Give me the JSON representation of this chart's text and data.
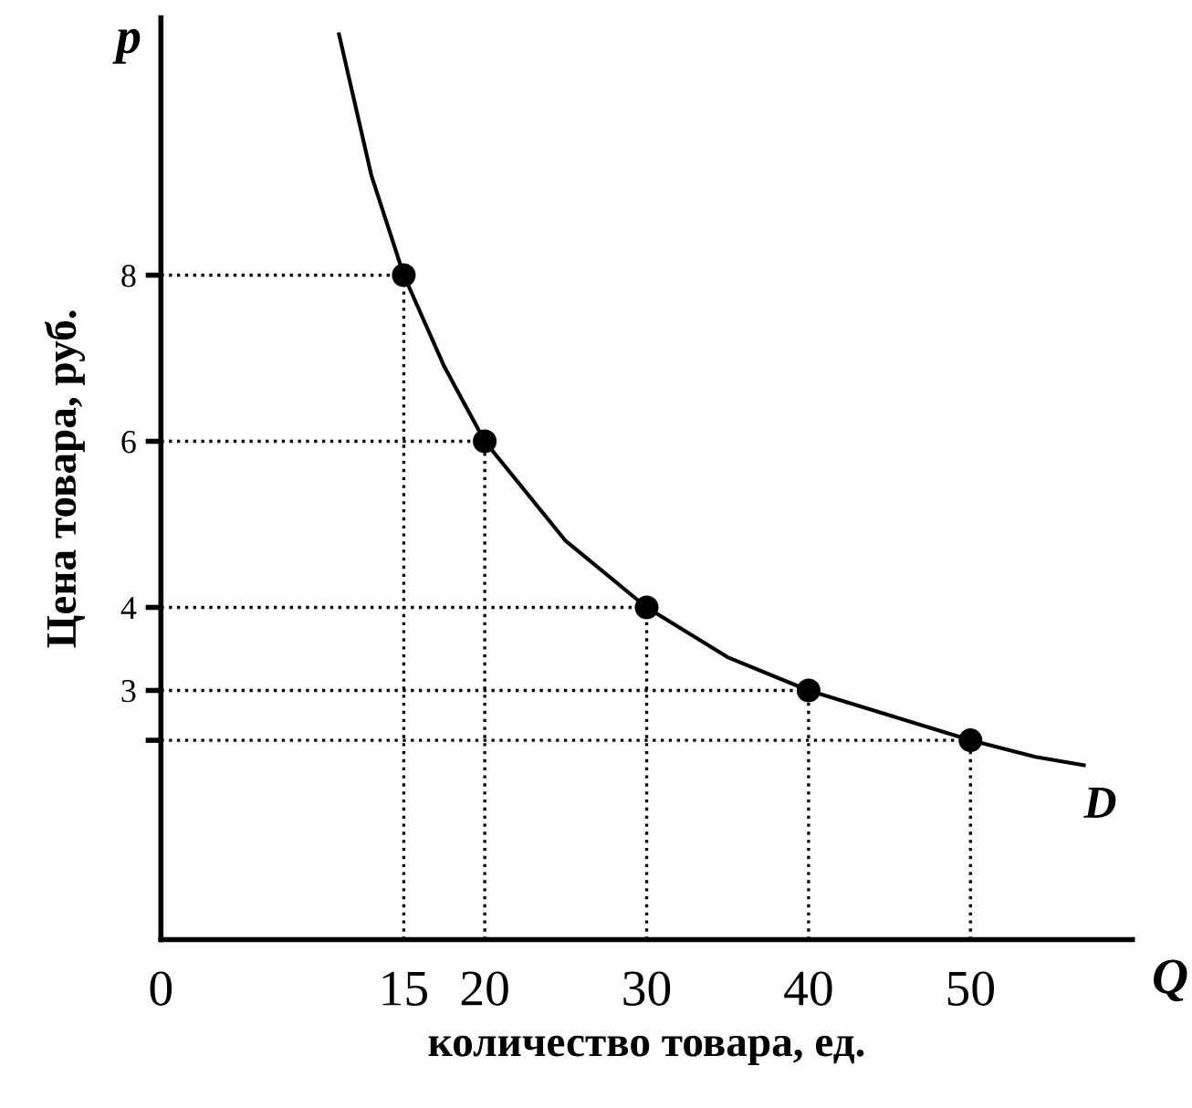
{
  "chart_data": {
    "type": "line",
    "xlabel": "количество товара, ед.",
    "ylabel": "Цена товара, руб.",
    "annotations": [
      "p",
      "Q"
    ],
    "xlim": [
      0,
      60
    ],
    "ylim": [
      0,
      11.1
    ],
    "xticks": [
      0,
      15,
      20,
      30,
      40,
      50
    ],
    "yticks": [
      {
        "value": 2.4,
        "label": null
      },
      3,
      4,
      6,
      8
    ],
    "grid": false,
    "legend": false,
    "series": [
      {
        "name": "D",
        "color": "#000000",
        "x": [
          11,
          13,
          15,
          17.5,
          20,
          25,
          30,
          35,
          40,
          45,
          50,
          54,
          57
        ],
        "values": [
          10.9,
          9.2,
          8,
          6.9,
          6,
          4.8,
          4,
          3.4,
          3,
          2.7,
          2.4,
          2.2,
          2.1
        ]
      },
      {
        "line_style": "dotted",
        "color": "#000000",
        "x": [
          0,
          15
        ],
        "values": [
          8,
          8
        ]
      },
      {
        "line_style": "dotted",
        "color": "#000000",
        "x": [
          15,
          15
        ],
        "values": [
          0,
          8
        ]
      },
      {
        "line_style": "dotted",
        "color": "#000000",
        "x": [
          0,
          20
        ],
        "values": [
          6,
          6
        ]
      },
      {
        "line_style": "dotted",
        "color": "#000000",
        "x": [
          20,
          20
        ],
        "values": [
          0,
          6
        ]
      },
      {
        "line_style": "dotted",
        "color": "#000000",
        "x": [
          0,
          30
        ],
        "values": [
          4,
          4
        ]
      },
      {
        "line_style": "dotted",
        "color": "#000000",
        "x": [
          30,
          30
        ],
        "values": [
          0,
          4
        ]
      },
      {
        "line_style": "dotted",
        "color": "#000000",
        "x": [
          0,
          40
        ],
        "values": [
          3,
          3
        ]
      },
      {
        "line_style": "dotted",
        "color": "#000000",
        "x": [
          40,
          40
        ],
        "values": [
          0,
          3
        ]
      },
      {
        "line_style": "dotted",
        "color": "#000000",
        "x": [
          0,
          50
        ],
        "values": [
          2.4,
          2.4
        ]
      },
      {
        "line_style": "dotted",
        "color": "#000000",
        "x": [
          50,
          50
        ],
        "values": [
          0,
          2.4
        ]
      },
      {
        "type": "scatter",
        "color": "#000000",
        "marker": "circle",
        "x": [
          15,
          20,
          30,
          40,
          50
        ],
        "values": [
          8,
          6,
          4,
          3,
          2.4
        ]
      }
    ]
  }
}
